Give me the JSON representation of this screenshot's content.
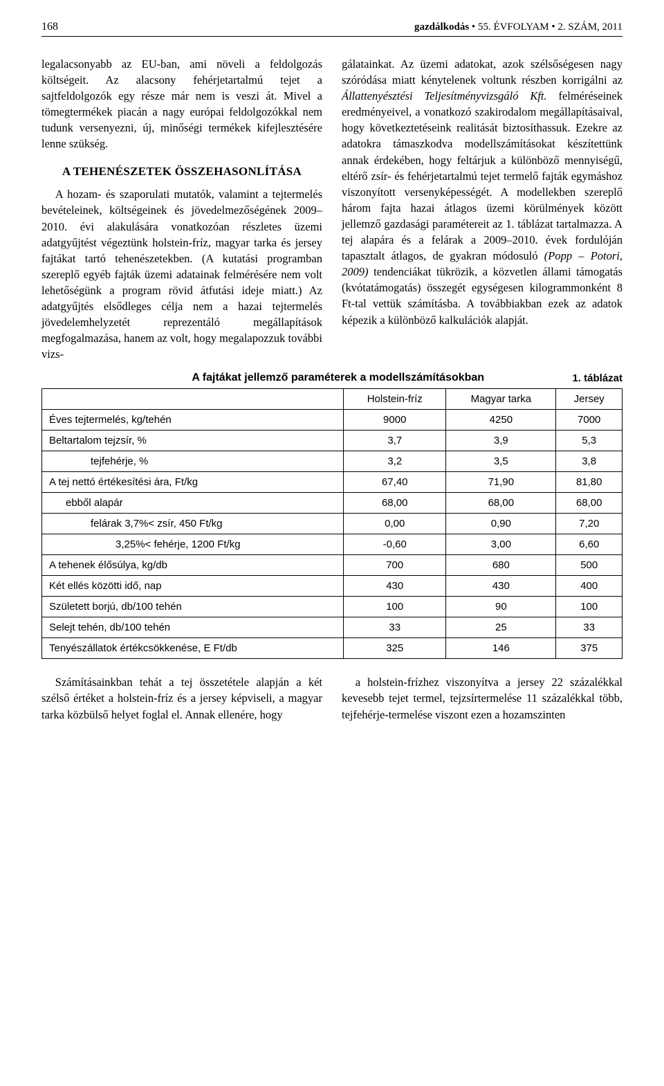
{
  "header": {
    "page_number": "168",
    "journal_title": "gazdálkodás",
    "middot": " • ",
    "volume": "55. ÉVFOLYAM",
    "issue": "2. SZÁM, 2011"
  },
  "left_column": {
    "para1": "legalacsonyabb az EU-ban, ami növeli a feldolgozás költségeit. Az alacsony fehérjetartalmú tejet a sajtfeldolgozók egy része már nem is veszi át. Mivel a tömegtermékek piacán a nagy európai feldolgozókkal nem tudunk versenyezni, új, minőségi termékek kifejlesztésére lenne szükség.",
    "section_head": "A TEHENÉSZETEK ÖSSZEHASONLÍTÁSA",
    "para2": "A hozam- és szaporulati mutatók, valamint a tejtermelés bevételeinek, költségeinek és jövedelmezőségének 2009–2010. évi alakulására vonatkozóan részletes üzemi adatgyűjtést végeztünk holstein-fríz, magyar tarka és jersey fajtákat tartó tehenészetekben. (A kutatási programban szereplő egyéb fajták üzemi adatainak felmérésére nem volt lehetőségünk a program rövid átfutási ideje miatt.) Az adatgyűjtés elsődleges célja nem a hazai tejtermelés jövedelemhelyzetét reprezentáló megállapítások megfogalmazása, hanem az volt, hogy megalapozzuk további vizs-"
  },
  "right_column": {
    "para1_a": "gálatainkat. Az üzemi adatokat, azok szélsőségesen nagy szóródása miatt kénytelenek voltunk részben korrigálni az ",
    "para1_italic1": "Állattenyésztési Teljesítményvizsgáló Kft.",
    "para1_b": " felméréseinek eredményeivel, a vonatkozó szakirodalom megállapításaival, hogy következtetéseink realitását biztosíthassuk. Ezekre az adatokra támaszkodva modellszámításokat készítettünk annak érdekében, hogy feltárjuk a különböző mennyiségű, eltérő zsír- és fehérjetartalmú tejet termelő fajták egymáshoz viszonyított versenyképességét. A modellekben szereplő három fajta hazai átlagos üzemi körülmények között jellemző gazdasági paramétereit az 1. táblázat tartalmazza. A tej alapára és a felárak a 2009–2010. évek fordulóján tapasztalt átlagos, de gyakran módosuló ",
    "para1_italic2": "(Popp – Potori, 2009)",
    "para1_c": " tendenciákat tükrözik, a közvetlen állami támogatás (kvótatámogatás) összegét egységesen kilogrammonként 8 Ft-tal vettük számításba. A továbbiakban ezek az adatok képezik a különböző kalkulációk alapját."
  },
  "table": {
    "number": "1. táblázat",
    "caption": "A fajtákat jellemző paraméterek a modellszámításokban",
    "columns": [
      "",
      "Holstein-fríz",
      "Magyar tarka",
      "Jersey"
    ],
    "rows": [
      {
        "label": "Éves tejtermelés, kg/tehén",
        "indent": 0,
        "values": [
          "9000",
          "4250",
          "7000"
        ]
      },
      {
        "label": "Beltartalom tejzsír, %",
        "indent": 0,
        "values": [
          "3,7",
          "3,9",
          "5,3"
        ]
      },
      {
        "label": "tejfehérje, %",
        "indent": 2,
        "values": [
          "3,2",
          "3,5",
          "3,8"
        ]
      },
      {
        "label": "A tej nettó értékesítési ára, Ft/kg",
        "indent": 0,
        "values": [
          "67,40",
          "71,90",
          "81,80"
        ]
      },
      {
        "label": "ebből alapár",
        "indent": 1,
        "values": [
          "68,00",
          "68,00",
          "68,00"
        ]
      },
      {
        "label": "felárak 3,7%< zsír, 450 Ft/kg",
        "indent": 2,
        "values": [
          "0,00",
          "0,90",
          "7,20"
        ]
      },
      {
        "label": "3,25%< fehérje, 1200 Ft/kg",
        "indent": 3,
        "values": [
          "-0,60",
          "3,00",
          "6,60"
        ]
      },
      {
        "label": "A tehenek élősúlya, kg/db",
        "indent": 0,
        "values": [
          "700",
          "680",
          "500"
        ]
      },
      {
        "label": "Két ellés közötti idő, nap",
        "indent": 0,
        "values": [
          "430",
          "430",
          "400"
        ]
      },
      {
        "label": "Született borjú, db/100 tehén",
        "indent": 0,
        "values": [
          "100",
          "90",
          "100"
        ]
      },
      {
        "label": "Selejt tehén, db/100 tehén",
        "indent": 0,
        "values": [
          "33",
          "25",
          "33"
        ]
      },
      {
        "label": "Tenyészállatok értékcsökkenése, E Ft/db",
        "indent": 0,
        "values": [
          "325",
          "146",
          "375"
        ]
      }
    ]
  },
  "bottom": {
    "left": "Számításainkban tehát a tej összetétele alapján a két szélső értéket a holstein-fríz és a jersey képviseli, a magyar tarka közbülső helyet foglal el. Annak ellenére, hogy",
    "right": "a holstein-frízhez viszonyítva a jersey 22 százalékkal kevesebb tejet termel, tejzsírtermelése 11 százalékkal több, tejfehérje-termelése viszont ezen a hozamszinten"
  }
}
